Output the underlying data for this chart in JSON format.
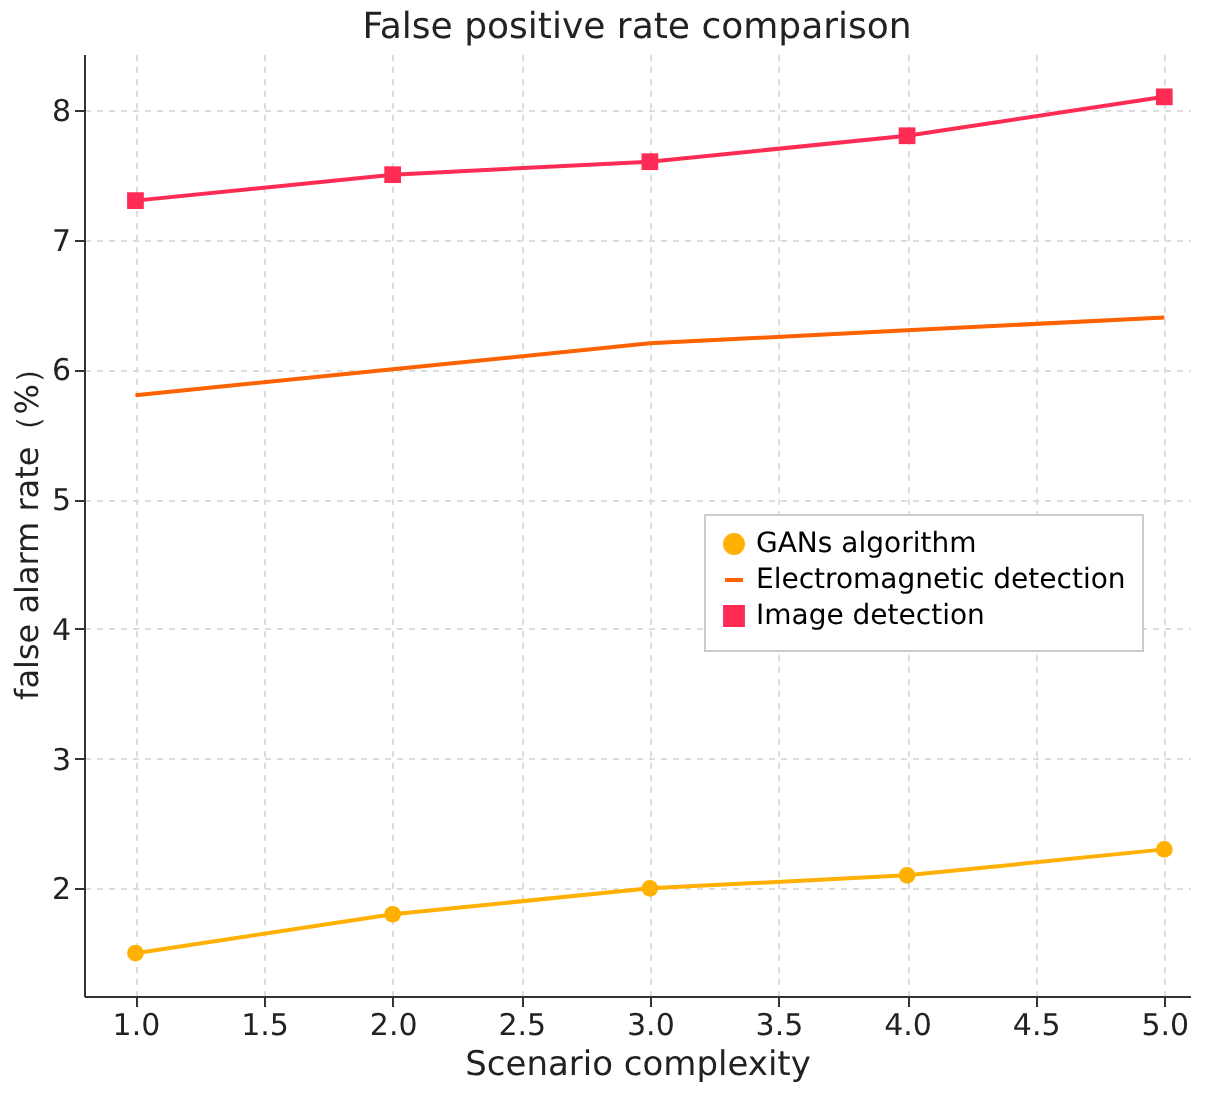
{
  "chart_data": {
    "type": "line",
    "title": "False positive rate comparison",
    "xlabel": "Scenario complexity",
    "ylabel": "false alarm rate（%）",
    "x": [
      1.0,
      2.0,
      3.0,
      4.0,
      5.0
    ],
    "series": [
      {
        "name": "GANs algorithm",
        "color": "#ffb000",
        "marker": "circle",
        "values": [
          1.5,
          1.8,
          2.0,
          2.1,
          2.3
        ]
      },
      {
        "name": "Electromagnetic detection",
        "color": "#fe6100",
        "marker": "none",
        "values": [
          5.8,
          6.0,
          6.2,
          6.3,
          6.4
        ]
      },
      {
        "name": "Image detection",
        "color": "#fe2c54",
        "marker": "square",
        "values": [
          7.3,
          7.5,
          7.6,
          7.8,
          8.1
        ]
      }
    ],
    "xlim": [
      0.8,
      5.1
    ],
    "ylim": [
      1.17,
      8.43
    ],
    "xticks": [
      {
        "value": 1.0,
        "label": "1.0"
      },
      {
        "value": 1.5,
        "label": "1.5"
      },
      {
        "value": 2.0,
        "label": "2.0"
      },
      {
        "value": 2.5,
        "label": "2.5"
      },
      {
        "value": 3.0,
        "label": "3.0"
      },
      {
        "value": 3.5,
        "label": "3.5"
      },
      {
        "value": 4.0,
        "label": "4.0"
      },
      {
        "value": 4.5,
        "label": "4.5"
      },
      {
        "value": 5.0,
        "label": "5.0"
      }
    ],
    "yticks": [
      2,
      3,
      4,
      5,
      6,
      7,
      8
    ],
    "grid": true,
    "legend": "right",
    "line_style": "solid"
  }
}
